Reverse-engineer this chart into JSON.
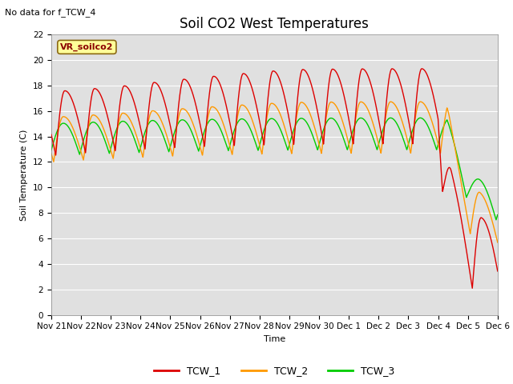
{
  "title": "Soil CO2 West Temperatures",
  "no_data_text": "No data for f_TCW_4",
  "legend_box_text": "VR_soilco2",
  "ylabel": "Soil Temperature (C)",
  "xlabel": "Time",
  "ylim": [
    0,
    22
  ],
  "bg_color": "#e0e0e0",
  "grid_color": "white",
  "line_colors": {
    "TCW_1": "#dd0000",
    "TCW_2": "#ff9900",
    "TCW_3": "#00cc00"
  },
  "legend_labels": [
    "TCW_1",
    "TCW_2",
    "TCW_3"
  ],
  "x_tick_labels": [
    "Nov 21",
    "Nov 22",
    "Nov 23",
    "Nov 24",
    "Nov 25",
    "Nov 26",
    "Nov 27",
    "Nov 28",
    "Nov 29",
    "Nov 30",
    "Dec 1",
    "Dec 2",
    "Dec 3",
    "Dec 4",
    "Dec 5",
    "Dec 6"
  ],
  "title_fontsize": 12,
  "label_fontsize": 8,
  "tick_fontsize": 7.5
}
